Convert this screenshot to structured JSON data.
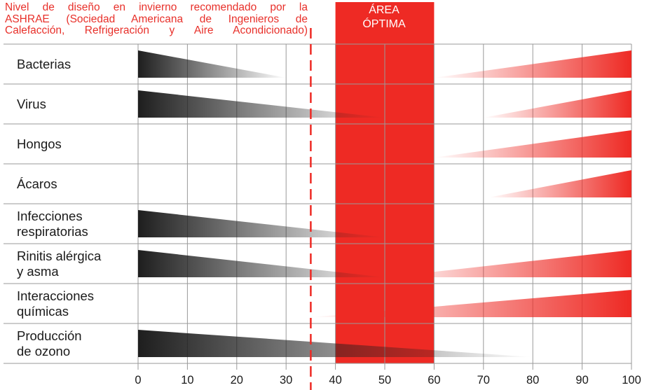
{
  "annotations": {
    "winter_note": [
      "Nivel de diseño en invierno recomendado por la",
      "ASHRAE (Sociedad Americana de Ingenieros de",
      "Calefacción, Refrigeración y Aire Acondicionado)"
    ],
    "optimal_area": [
      "ÁREA",
      "ÓPTIMA"
    ]
  },
  "colors": {
    "dark": "#1e1e1e",
    "accent": "#ee2a24",
    "grid": "#999999"
  },
  "chart_data": {
    "type": "bar",
    "title": "",
    "xlabel": "",
    "ylabel": "",
    "xlim": [
      0,
      100
    ],
    "xticks": [
      "0",
      "10",
      "20",
      "30",
      "40",
      "50",
      "60",
      "70",
      "80",
      "90",
      "100"
    ],
    "optimal_range": [
      40,
      60
    ],
    "winter_design_level": 35,
    "categories": [
      {
        "label": [
          "Bacterias"
        ],
        "decreasing": [
          0,
          30
        ],
        "increasing": [
          60,
          100
        ]
      },
      {
        "label": [
          "Virus"
        ],
        "decreasing": [
          0,
          50
        ],
        "increasing": [
          70,
          100
        ]
      },
      {
        "label": [
          "Hongos"
        ],
        "decreasing": null,
        "increasing": [
          60,
          100
        ]
      },
      {
        "label": [
          "Ácaros"
        ],
        "decreasing": null,
        "increasing": [
          71,
          100
        ]
      },
      {
        "label": [
          "Infecciones",
          "respiratorias"
        ],
        "decreasing": [
          0,
          50
        ],
        "increasing": null
      },
      {
        "label": [
          "Rinitis alérgica",
          "y asma"
        ],
        "decreasing": [
          0,
          50
        ],
        "increasing": [
          50,
          100
        ]
      },
      {
        "label": [
          "Interacciones",
          "químicas"
        ],
        "decreasing": null,
        "increasing": [
          35,
          100
        ]
      },
      {
        "label": [
          "Producción",
          "de ozono"
        ],
        "decreasing": [
          0,
          80
        ],
        "increasing": null
      }
    ]
  }
}
